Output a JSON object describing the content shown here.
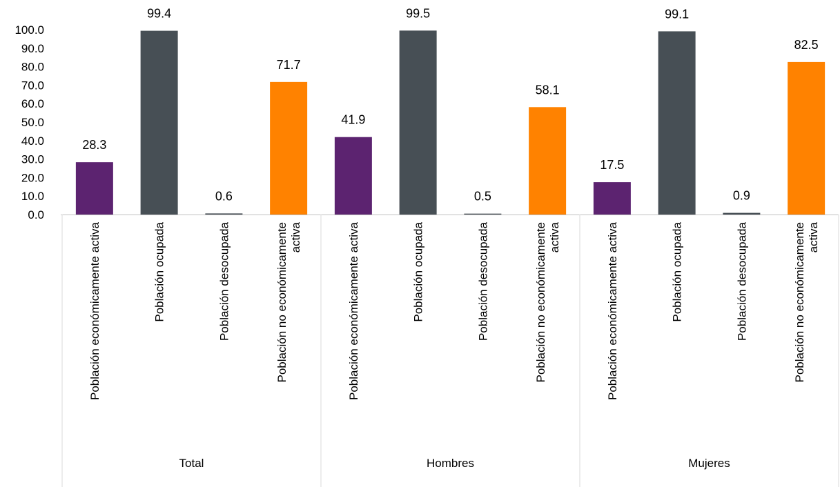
{
  "chart_data": {
    "type": "bar",
    "groups": [
      "Total",
      "Hombres",
      "Mujeres"
    ],
    "categories": [
      "Población económicamente activa",
      "Población ocupada",
      "Población desocupada",
      "Población no económicamente activa"
    ],
    "category_lines": [
      [
        "Población económicamente activa"
      ],
      [
        "Población ocupada"
      ],
      [
        "Población desocupada"
      ],
      [
        "Población no económicamente",
        "activa"
      ]
    ],
    "category_colors": [
      "#5c2370",
      "#474f55",
      "#474f55",
      "#ff8200"
    ],
    "values": [
      [
        28.3,
        99.4,
        0.6,
        71.7
      ],
      [
        41.9,
        99.5,
        0.5,
        58.1
      ],
      [
        17.5,
        99.1,
        0.9,
        82.5
      ]
    ],
    "value_labels": [
      [
        "28.3",
        "99.4",
        "0.6",
        "71.7"
      ],
      [
        "41.9",
        "99.5",
        "0.5",
        "58.1"
      ],
      [
        "17.5",
        "99.1",
        "0.9",
        "82.5"
      ]
    ],
    "yticks": [
      "0.0",
      "10.0",
      "20.0",
      "30.0",
      "40.0",
      "50.0",
      "60.0",
      "70.0",
      "80.0",
      "90.0",
      "100.0"
    ],
    "ylim": [
      0,
      100
    ],
    "grid": false,
    "legend": "none"
  }
}
